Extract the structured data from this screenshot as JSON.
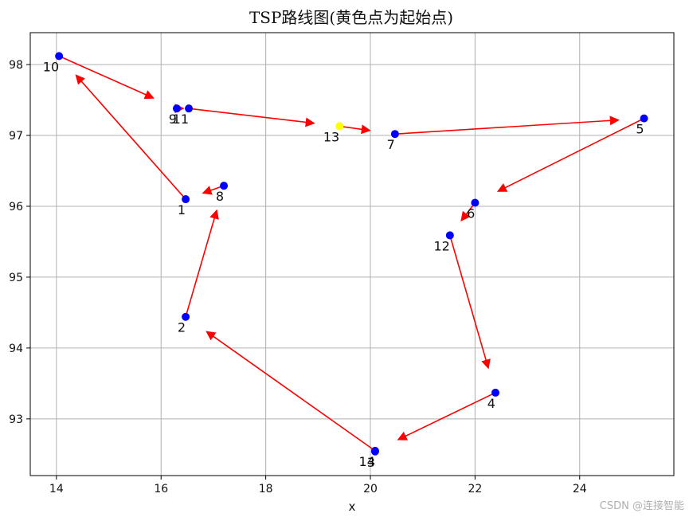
{
  "chart_data": {
    "type": "scatter",
    "title": "TSP路线图(黄色点为起始点)",
    "xlabel": "x",
    "ylabel": "",
    "xlim": [
      13.5,
      25.8
    ],
    "ylim": [
      92.2,
      98.45
    ],
    "xticks": [
      14,
      16,
      18,
      20,
      22,
      24
    ],
    "yticks": [
      93,
      94,
      95,
      96,
      97,
      98
    ],
    "grid": true,
    "point_color": "#0000ff",
    "start_color": "#ffff00",
    "arrow_color": "#ff0000",
    "points": [
      {
        "label": "1",
        "x": 16.47,
        "y": 96.1
      },
      {
        "label": "2",
        "x": 16.47,
        "y": 94.44
      },
      {
        "label": "3",
        "x": 20.09,
        "y": 92.54
      },
      {
        "label": "4",
        "x": 22.39,
        "y": 93.37
      },
      {
        "label": "5",
        "x": 25.23,
        "y": 97.24
      },
      {
        "label": "6",
        "x": 22.0,
        "y": 96.05
      },
      {
        "label": "7",
        "x": 20.47,
        "y": 97.02
      },
      {
        "label": "8",
        "x": 17.2,
        "y": 96.29
      },
      {
        "label": "9",
        "x": 16.3,
        "y": 97.38
      },
      {
        "label": "10",
        "x": 14.05,
        "y": 98.12
      },
      {
        "label": "11",
        "x": 16.53,
        "y": 97.38
      },
      {
        "label": "12",
        "x": 21.52,
        "y": 95.59
      },
      {
        "label": "13",
        "x": 19.41,
        "y": 97.13
      },
      {
        "label": "14",
        "x": 20.09,
        "y": 92.55
      }
    ],
    "start_point": "13",
    "route": [
      "13",
      "7",
      "5",
      "6",
      "12",
      "4",
      "14",
      "2",
      "8",
      "1",
      "10",
      "9",
      "11",
      "13"
    ]
  },
  "watermark": "CSDN @连接智能"
}
